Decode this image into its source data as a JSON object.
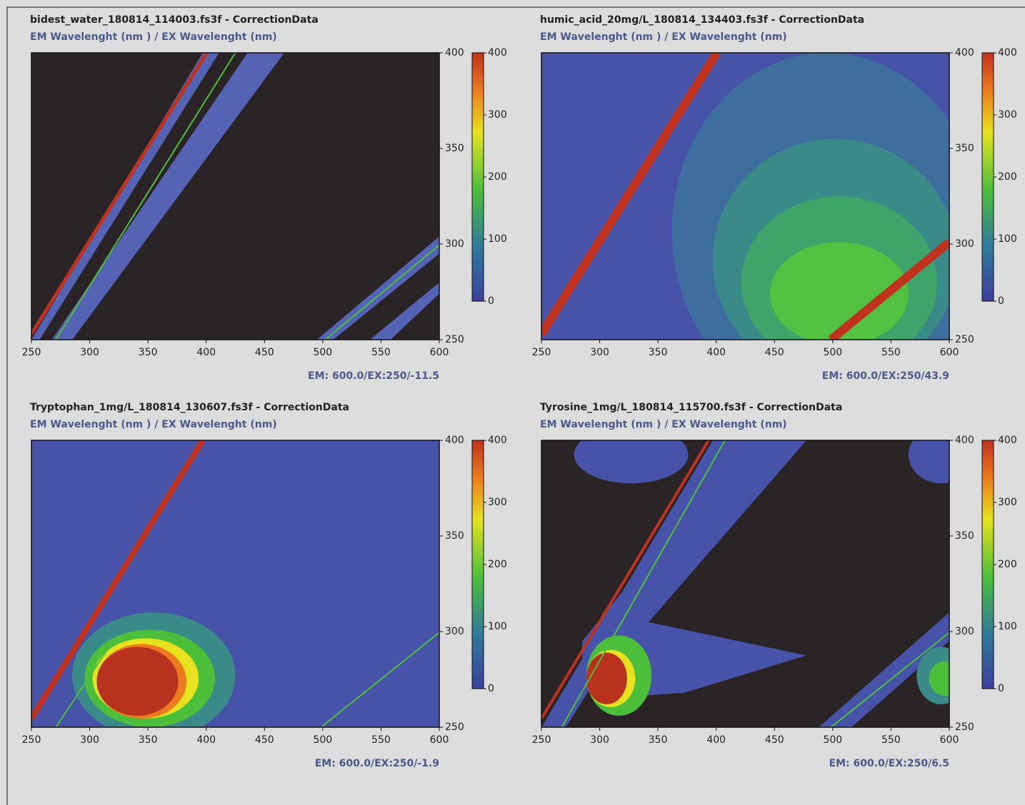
{
  "chart_data": [
    {
      "type": "heatmap",
      "title": "bidest_water_180814_114003.fs3f - CorrectionData",
      "subtitle": "EM Wavelenght (nm ) / EX Wavelenght (nm)",
      "xlim": [
        250,
        600
      ],
      "xticks": [
        250,
        300,
        350,
        400,
        450,
        500,
        550,
        600
      ],
      "ylim": [
        250,
        400
      ],
      "yticks": [
        250,
        300,
        350,
        400
      ],
      "clim": [
        0,
        400
      ],
      "cticks": [
        0,
        100,
        200,
        300,
        400
      ],
      "status": "EM: 600.0/EX:250/-11.5"
    },
    {
      "type": "heatmap",
      "title": "humic_acid_20mg/L_180814_134403.fs3f - CorrectionData",
      "subtitle": "EM Wavelenght (nm ) / EX Wavelenght (nm)",
      "xlim": [
        250,
        600
      ],
      "xticks": [
        250,
        300,
        350,
        400,
        450,
        500,
        550,
        600
      ],
      "ylim": [
        250,
        400
      ],
      "yticks": [
        250,
        300,
        350,
        400
      ],
      "clim": [
        0,
        400
      ],
      "cticks": [
        0,
        100,
        200,
        300,
        400
      ],
      "status": "EM: 600.0/EX:250/43.9"
    },
    {
      "type": "heatmap",
      "title": "Tryptophan_1mg/L_180814_130607.fs3f - CorrectionData",
      "subtitle": "EM Wavelenght (nm ) / EX Wavelenght (nm)",
      "xlim": [
        250,
        600
      ],
      "xticks": [
        250,
        300,
        350,
        400,
        450,
        500,
        550,
        600
      ],
      "ylim": [
        250,
        400
      ],
      "yticks": [
        250,
        300,
        350,
        400
      ],
      "clim": [
        0,
        400
      ],
      "cticks": [
        0,
        100,
        200,
        300,
        400
      ],
      "status": "EM: 600.0/EX:250/-1.9"
    },
    {
      "type": "heatmap",
      "title": "Tyrosine_1mg/L_180814_115700.fs3f - CorrectionData",
      "subtitle": "EM Wavelenght (nm ) / EX Wavelenght (nm)",
      "xlim": [
        250,
        600
      ],
      "xticks": [
        250,
        300,
        350,
        400,
        450,
        500,
        550,
        600
      ],
      "ylim": [
        250,
        400
      ],
      "yticks": [
        250,
        300,
        350,
        400
      ],
      "clim": [
        0,
        400
      ],
      "cticks": [
        0,
        100,
        200,
        300,
        400
      ],
      "status": "EM: 600.0/EX:250/6.5"
    }
  ]
}
